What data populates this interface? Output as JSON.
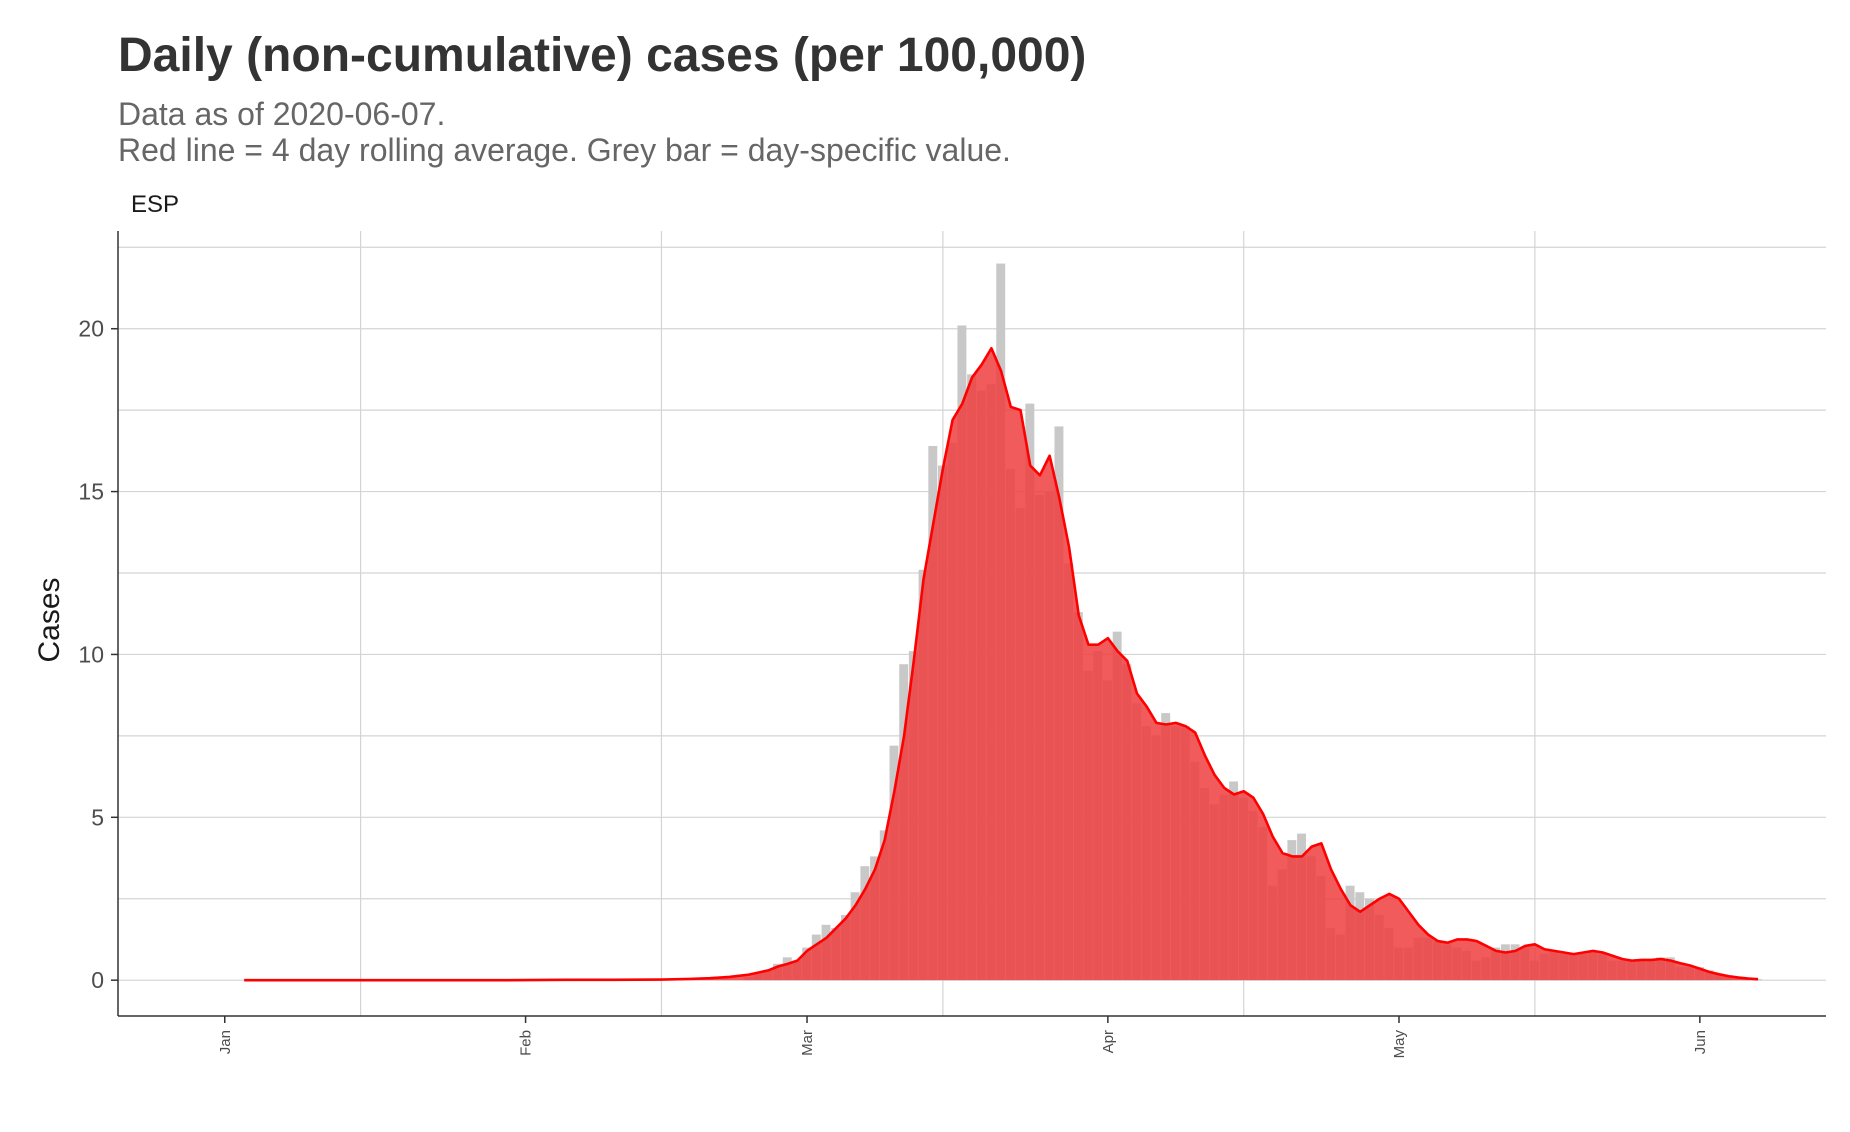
{
  "chart_data": {
    "type": "bar",
    "title": "Daily (non-cumulative) cases (per 100,000)",
    "subtitle": [
      "Data as of 2020-06-07.",
      "Red line = 4 day rolling average. Grey bar = day-specific value."
    ],
    "facet_label": "ESP",
    "xlabel": "",
    "ylabel": "Cases",
    "ylim": [
      -1.1,
      23
    ],
    "y_ticks": [
      0,
      5,
      10,
      15,
      20
    ],
    "x_ticks": [
      {
        "label": "Jan",
        "date": "2020-01-01"
      },
      {
        "label": "Feb",
        "date": "2020-02-01"
      },
      {
        "label": "Mar",
        "date": "2020-03-01"
      },
      {
        "label": "Apr",
        "date": "2020-04-01"
      },
      {
        "label": "May",
        "date": "2020-05-01"
      },
      {
        "label": "Jun",
        "date": "2020-06-01"
      }
    ],
    "xlim": [
      "2019-12-21",
      "2020-06-14"
    ],
    "grid": true,
    "series": [
      {
        "name": "day-specific value",
        "color": "#c8c8c8",
        "points": [
          [
            "2020-02-24",
            0.1
          ],
          [
            "2020-02-25",
            0.2
          ],
          [
            "2020-02-26",
            0.3
          ],
          [
            "2020-02-27",
            0.5
          ],
          [
            "2020-02-28",
            0.7
          ],
          [
            "2020-02-29",
            0.6
          ],
          [
            "2020-03-01",
            1.0
          ],
          [
            "2020-03-02",
            1.4
          ],
          [
            "2020-03-03",
            1.7
          ],
          [
            "2020-03-04",
            1.6
          ],
          [
            "2020-03-05",
            2.0
          ],
          [
            "2020-03-06",
            2.7
          ],
          [
            "2020-03-07",
            3.5
          ],
          [
            "2020-03-08",
            3.8
          ],
          [
            "2020-03-09",
            4.6
          ],
          [
            "2020-03-10",
            7.2
          ],
          [
            "2020-03-11",
            9.7
          ],
          [
            "2020-03-12",
            10.1
          ],
          [
            "2020-03-13",
            12.6
          ],
          [
            "2020-03-14",
            16.4
          ],
          [
            "2020-03-15",
            15.8
          ],
          [
            "2020-03-16",
            16.5
          ],
          [
            "2020-03-17",
            20.1
          ],
          [
            "2020-03-18",
            18.6
          ],
          [
            "2020-03-19",
            18.1
          ],
          [
            "2020-03-20",
            18.3
          ],
          [
            "2020-03-21",
            22.0
          ],
          [
            "2020-03-22",
            15.7
          ],
          [
            "2020-03-23",
            14.5
          ],
          [
            "2020-03-24",
            17.7
          ],
          [
            "2020-03-25",
            14.9
          ],
          [
            "2020-03-26",
            15.0
          ],
          [
            "2020-03-27",
            17.0
          ],
          [
            "2020-03-28",
            12.8
          ],
          [
            "2020-03-29",
            11.3
          ],
          [
            "2020-03-30",
            9.5
          ],
          [
            "2020-03-31",
            10.1
          ],
          [
            "2020-04-01",
            9.2
          ],
          [
            "2020-04-02",
            10.7
          ],
          [
            "2020-04-03",
            9.7
          ],
          [
            "2020-04-04",
            8.5
          ],
          [
            "2020-04-05",
            7.8
          ],
          [
            "2020-04-06",
            7.5
          ],
          [
            "2020-04-07",
            8.2
          ],
          [
            "2020-04-08",
            7.8
          ],
          [
            "2020-04-09",
            7.8
          ],
          [
            "2020-04-10",
            6.7
          ],
          [
            "2020-04-11",
            5.9
          ],
          [
            "2020-04-12",
            5.4
          ],
          [
            "2020-04-13",
            5.7
          ],
          [
            "2020-04-14",
            6.1
          ],
          [
            "2020-04-15",
            5.6
          ],
          [
            "2020-04-16",
            5.2
          ],
          [
            "2020-04-17",
            4.7
          ],
          [
            "2020-04-18",
            2.9
          ],
          [
            "2020-04-19",
            3.4
          ],
          [
            "2020-04-20",
            4.3
          ],
          [
            "2020-04-21",
            4.5
          ],
          [
            "2020-04-22",
            3.8
          ],
          [
            "2020-04-23",
            3.2
          ],
          [
            "2020-04-24",
            1.6
          ],
          [
            "2020-04-25",
            1.4
          ],
          [
            "2020-04-26",
            2.9
          ],
          [
            "2020-04-27",
            2.7
          ],
          [
            "2020-04-28",
            2.5
          ],
          [
            "2020-04-29",
            2.0
          ],
          [
            "2020-04-30",
            1.6
          ],
          [
            "2020-05-01",
            1.0
          ],
          [
            "2020-05-02",
            1.0
          ],
          [
            "2020-05-03",
            1.3
          ],
          [
            "2020-05-04",
            1.3
          ],
          [
            "2020-05-05",
            1.2
          ],
          [
            "2020-05-06",
            1.1
          ],
          [
            "2020-05-07",
            1.0
          ],
          [
            "2020-05-08",
            0.9
          ],
          [
            "2020-05-09",
            0.6
          ],
          [
            "2020-05-10",
            0.7
          ],
          [
            "2020-05-11",
            1.0
          ],
          [
            "2020-05-12",
            1.1
          ],
          [
            "2020-05-13",
            1.1
          ],
          [
            "2020-05-14",
            1.0
          ],
          [
            "2020-05-15",
            0.6
          ],
          [
            "2020-05-16",
            0.8
          ],
          [
            "2020-05-17",
            0.9
          ],
          [
            "2020-05-18",
            0.8
          ],
          [
            "2020-05-19",
            0.8
          ],
          [
            "2020-05-20",
            0.8
          ],
          [
            "2020-05-21",
            0.9
          ],
          [
            "2020-05-22",
            0.8
          ],
          [
            "2020-05-23",
            0.6
          ],
          [
            "2020-05-24",
            0.6
          ],
          [
            "2020-05-25",
            0.6
          ],
          [
            "2020-05-26",
            0.6
          ],
          [
            "2020-05-27",
            0.6
          ],
          [
            "2020-05-28",
            0.7
          ],
          [
            "2020-05-29",
            0.7
          ],
          [
            "2020-05-30",
            0.4
          ],
          [
            "2020-05-31",
            0.4
          ],
          [
            "2020-06-01",
            0.4
          ],
          [
            "2020-06-02",
            0.3
          ],
          [
            "2020-06-03",
            0.2
          ],
          [
            "2020-06-04",
            0.15
          ],
          [
            "2020-06-05",
            0.1
          ],
          [
            "2020-06-06",
            0.05
          ],
          [
            "2020-06-07",
            0.03
          ]
        ]
      },
      {
        "name": "4 day rolling average",
        "color": "#ff0000",
        "fill": "#ef3e3e",
        "points": [
          [
            "2020-01-03",
            0.0
          ],
          [
            "2020-01-10",
            0.0
          ],
          [
            "2020-01-20",
            0.0
          ],
          [
            "2020-01-30",
            0.0
          ],
          [
            "2020-02-05",
            0.01
          ],
          [
            "2020-02-10",
            0.01
          ],
          [
            "2020-02-15",
            0.02
          ],
          [
            "2020-02-18",
            0.04
          ],
          [
            "2020-02-20",
            0.06
          ],
          [
            "2020-02-22",
            0.1
          ],
          [
            "2020-02-24",
            0.17
          ],
          [
            "2020-02-26",
            0.3
          ],
          [
            "2020-02-27",
            0.42
          ],
          [
            "2020-02-28",
            0.5
          ],
          [
            "2020-02-29",
            0.6
          ],
          [
            "2020-03-01",
            0.9
          ],
          [
            "2020-03-02",
            1.1
          ],
          [
            "2020-03-03",
            1.3
          ],
          [
            "2020-03-04",
            1.6
          ],
          [
            "2020-03-05",
            1.9
          ],
          [
            "2020-03-06",
            2.3
          ],
          [
            "2020-03-07",
            2.8
          ],
          [
            "2020-03-08",
            3.4
          ],
          [
            "2020-03-09",
            4.3
          ],
          [
            "2020-03-10",
            5.8
          ],
          [
            "2020-03-11",
            7.5
          ],
          [
            "2020-03-12",
            9.8
          ],
          [
            "2020-03-13",
            12.3
          ],
          [
            "2020-03-14",
            14.0
          ],
          [
            "2020-03-15",
            15.7
          ],
          [
            "2020-03-16",
            17.2
          ],
          [
            "2020-03-17",
            17.7
          ],
          [
            "2020-03-18",
            18.5
          ],
          [
            "2020-03-19",
            18.9
          ],
          [
            "2020-03-20",
            19.4
          ],
          [
            "2020-03-21",
            18.7
          ],
          [
            "2020-03-22",
            17.6
          ],
          [
            "2020-03-23",
            17.5
          ],
          [
            "2020-03-24",
            15.8
          ],
          [
            "2020-03-25",
            15.5
          ],
          [
            "2020-03-26",
            16.1
          ],
          [
            "2020-03-27",
            14.8
          ],
          [
            "2020-03-28",
            13.3
          ],
          [
            "2020-03-29",
            11.2
          ],
          [
            "2020-03-30",
            10.3
          ],
          [
            "2020-03-31",
            10.3
          ],
          [
            "2020-04-01",
            10.5
          ],
          [
            "2020-04-02",
            10.1
          ],
          [
            "2020-04-03",
            9.8
          ],
          [
            "2020-04-04",
            8.8
          ],
          [
            "2020-04-05",
            8.4
          ],
          [
            "2020-04-06",
            7.9
          ],
          [
            "2020-04-07",
            7.85
          ],
          [
            "2020-04-08",
            7.9
          ],
          [
            "2020-04-09",
            7.8
          ],
          [
            "2020-04-10",
            7.6
          ],
          [
            "2020-04-11",
            6.9
          ],
          [
            "2020-04-12",
            6.3
          ],
          [
            "2020-04-13",
            5.9
          ],
          [
            "2020-04-14",
            5.7
          ],
          [
            "2020-04-15",
            5.8
          ],
          [
            "2020-04-16",
            5.6
          ],
          [
            "2020-04-17",
            5.1
          ],
          [
            "2020-04-18",
            4.4
          ],
          [
            "2020-04-19",
            3.9
          ],
          [
            "2020-04-20",
            3.8
          ],
          [
            "2020-04-21",
            3.8
          ],
          [
            "2020-04-22",
            4.1
          ],
          [
            "2020-04-23",
            4.2
          ],
          [
            "2020-04-24",
            3.4
          ],
          [
            "2020-04-25",
            2.8
          ],
          [
            "2020-04-26",
            2.3
          ],
          [
            "2020-04-27",
            2.1
          ],
          [
            "2020-04-28",
            2.3
          ],
          [
            "2020-04-29",
            2.5
          ],
          [
            "2020-04-30",
            2.65
          ],
          [
            "2020-05-01",
            2.5
          ],
          [
            "2020-05-02",
            2.1
          ],
          [
            "2020-05-03",
            1.7
          ],
          [
            "2020-05-04",
            1.4
          ],
          [
            "2020-05-05",
            1.2
          ],
          [
            "2020-05-06",
            1.15
          ],
          [
            "2020-05-07",
            1.25
          ],
          [
            "2020-05-08",
            1.25
          ],
          [
            "2020-05-09",
            1.2
          ],
          [
            "2020-05-10",
            1.05
          ],
          [
            "2020-05-11",
            0.9
          ],
          [
            "2020-05-12",
            0.85
          ],
          [
            "2020-05-13",
            0.9
          ],
          [
            "2020-05-14",
            1.05
          ],
          [
            "2020-05-15",
            1.1
          ],
          [
            "2020-05-16",
            0.95
          ],
          [
            "2020-05-17",
            0.9
          ],
          [
            "2020-05-18",
            0.85
          ],
          [
            "2020-05-19",
            0.8
          ],
          [
            "2020-05-20",
            0.85
          ],
          [
            "2020-05-21",
            0.9
          ],
          [
            "2020-05-22",
            0.85
          ],
          [
            "2020-05-23",
            0.75
          ],
          [
            "2020-05-24",
            0.65
          ],
          [
            "2020-05-25",
            0.6
          ],
          [
            "2020-05-26",
            0.62
          ],
          [
            "2020-05-27",
            0.62
          ],
          [
            "2020-05-28",
            0.65
          ],
          [
            "2020-05-29",
            0.6
          ],
          [
            "2020-05-30",
            0.52
          ],
          [
            "2020-05-31",
            0.45
          ],
          [
            "2020-06-01",
            0.35
          ],
          [
            "2020-06-02",
            0.25
          ],
          [
            "2020-06-03",
            0.18
          ],
          [
            "2020-06-04",
            0.12
          ],
          [
            "2020-06-05",
            0.08
          ],
          [
            "2020-06-06",
            0.05
          ],
          [
            "2020-06-07",
            0.03
          ]
        ]
      }
    ]
  }
}
